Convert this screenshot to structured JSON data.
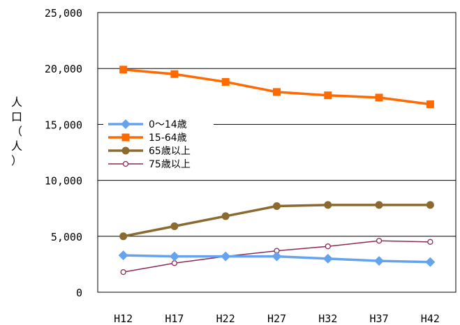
{
  "chart_data": {
    "type": "line",
    "categories": [
      "H12",
      "H17",
      "H22",
      "H27",
      "H32",
      "H37",
      "H42"
    ],
    "y_ticks": [
      "0",
      "5,000",
      "10,000",
      "15,000",
      "20,000",
      "25,000"
    ],
    "ylim": [
      0,
      25000
    ],
    "ylabel_chars": [
      "人",
      "口",
      "（",
      "人",
      "）"
    ],
    "grid": true,
    "legend_position": "left-middle",
    "series": [
      {
        "name": "0～14歳",
        "color": "#66a3ee",
        "marker": "diamond",
        "values": [
          3300,
          3200,
          3200,
          3200,
          3000,
          2800,
          2700
        ]
      },
      {
        "name": "15-64歳",
        "color": "#ff6a00",
        "marker": "square",
        "values": [
          19900,
          19500,
          18800,
          17900,
          17600,
          17400,
          16800
        ]
      },
      {
        "name": "65歳以上",
        "color": "#8b6a2f",
        "marker": "circle",
        "values": [
          5000,
          5900,
          6800,
          7700,
          7800,
          7800,
          7800
        ]
      },
      {
        "name": "75歳以上",
        "color": "#8a2a54",
        "marker": "open-circle",
        "values": [
          1800,
          2600,
          3200,
          3700,
          4100,
          4600,
          4500
        ]
      }
    ]
  }
}
